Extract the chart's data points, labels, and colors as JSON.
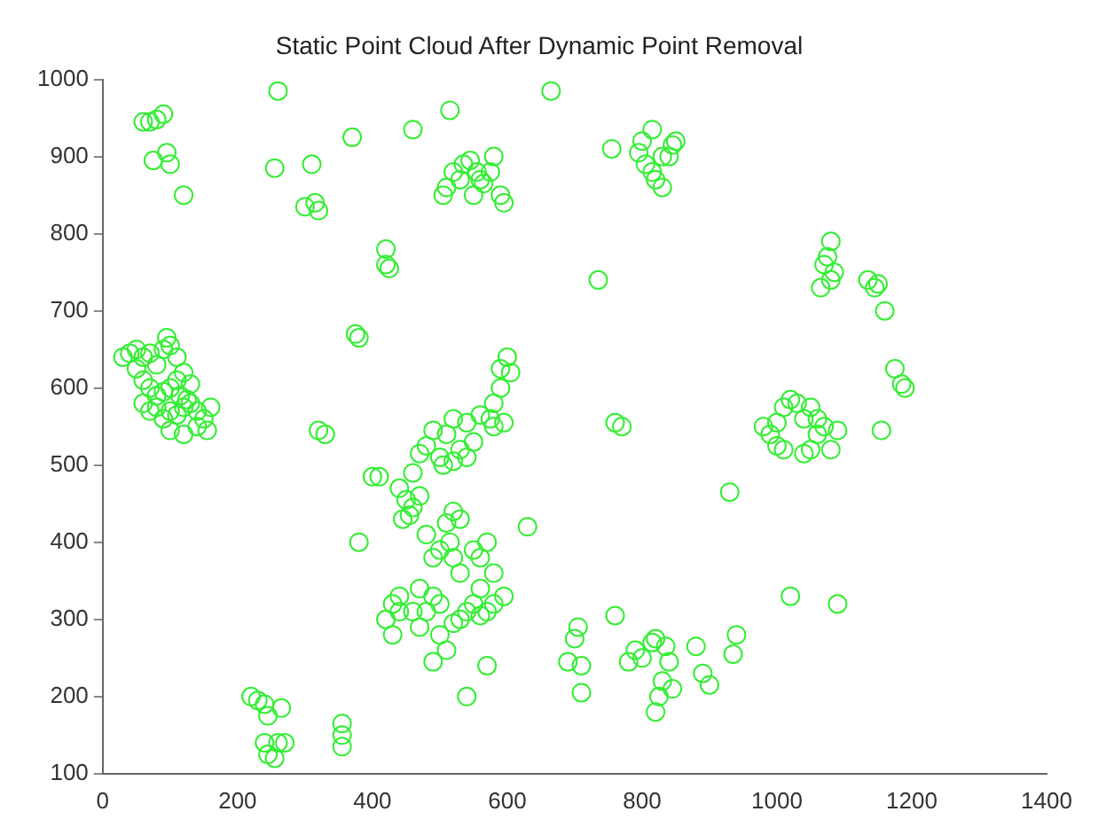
{
  "chart_data": {
    "type": "scatter",
    "title": "Static Point Cloud After Dynamic Point Removal",
    "marker": "circle",
    "grid": false,
    "legend": false,
    "xlim": [
      0,
      1400
    ],
    "xticks": [
      0,
      200,
      400,
      600,
      800,
      1000,
      1200,
      1400
    ],
    "ylim": [
      100,
      1000
    ],
    "yticks": [
      100,
      200,
      300,
      400,
      500,
      600,
      700,
      800,
      900,
      1000
    ],
    "series": [
      {
        "color": "#33ee33",
        "x": [
          70,
          80,
          90,
          60,
          75,
          95,
          100,
          120,
          260,
          255,
          310,
          300,
          315,
          320,
          370,
          420,
          420,
          425,
          460,
          515,
          505,
          510,
          520,
          530,
          535,
          545,
          555,
          560,
          575,
          580,
          590,
          595,
          550,
          565,
          665,
          755,
          795,
          800,
          815,
          805,
          815,
          820,
          830,
          840,
          845,
          850,
          830,
          375,
          380,
          735,
          760,
          770,
          1080,
          1075,
          1070,
          1085,
          1065,
          1080,
          1135,
          1145,
          1150,
          1160,
          1175,
          1185,
          1190,
          1155,
          30,
          40,
          50,
          60,
          70,
          80,
          90,
          95,
          100,
          110,
          50,
          60,
          70,
          80,
          90,
          100,
          110,
          120,
          130,
          60,
          70,
          80,
          90,
          100,
          110,
          120,
          130,
          140,
          150,
          160,
          100,
          120,
          140,
          155,
          115,
          125,
          320,
          330,
          400,
          410,
          540,
          560,
          580,
          590,
          600,
          605,
          590,
          580,
          575,
          595,
          520,
          490,
          510,
          530,
          500,
          505,
          520,
          540,
          550,
          470,
          460,
          480,
          630,
          380,
          440,
          450,
          460,
          470,
          445,
          455,
          480,
          490,
          500,
          510,
          520,
          530,
          515,
          520,
          530,
          550,
          560,
          570,
          580,
          560,
          550,
          540,
          530,
          520,
          500,
          490,
          480,
          470,
          440,
          430,
          420,
          440,
          460,
          470,
          500,
          510,
          490,
          560,
          570,
          580,
          595,
          540,
          570,
          430,
          690,
          700,
          705,
          710,
          710,
          760,
          780,
          790,
          800,
          820,
          835,
          815,
          840,
          830,
          825,
          820,
          845,
          880,
          890,
          900,
          935,
          940,
          930,
          1020,
          1090,
          980,
          990,
          1000,
          1010,
          1020,
          1030,
          1050,
          1040,
          1060,
          1070,
          1060,
          1050,
          1040,
          1080,
          1090,
          1000,
          1010,
          220,
          230,
          240,
          245,
          265,
          240,
          245,
          255,
          260,
          270,
          355,
          355,
          355
        ],
        "values": [
          945,
          948,
          955,
          945,
          895,
          905,
          890,
          850,
          985,
          885,
          890,
          835,
          840,
          830,
          925,
          780,
          760,
          755,
          935,
          960,
          850,
          860,
          880,
          870,
          890,
          895,
          880,
          870,
          880,
          900,
          850,
          840,
          850,
          865,
          985,
          910,
          905,
          920,
          935,
          890,
          880,
          870,
          860,
          900,
          915,
          920,
          900,
          670,
          665,
          740,
          555,
          550,
          790,
          770,
          760,
          750,
          730,
          740,
          740,
          730,
          735,
          700,
          625,
          605,
          600,
          545,
          640,
          645,
          650,
          640,
          645,
          630,
          650,
          665,
          655,
          640,
          625,
          610,
          600,
          590,
          595,
          600,
          610,
          620,
          605,
          580,
          570,
          575,
          560,
          570,
          565,
          575,
          580,
          570,
          560,
          575,
          545,
          540,
          550,
          545,
          590,
          585,
          545,
          540,
          485,
          485,
          555,
          565,
          580,
          625,
          640,
          620,
          600,
          550,
          560,
          555,
          560,
          545,
          540,
          520,
          510,
          500,
          505,
          510,
          530,
          515,
          490,
          525,
          420,
          400,
          470,
          455,
          445,
          460,
          430,
          435,
          410,
          380,
          390,
          425,
          440,
          430,
          400,
          380,
          360,
          390,
          380,
          400,
          360,
          340,
          320,
          310,
          300,
          295,
          320,
          330,
          310,
          340,
          330,
          320,
          300,
          310,
          310,
          290,
          280,
          260,
          245,
          305,
          310,
          320,
          330,
          200,
          240,
          280,
          245,
          275,
          290,
          240,
          205,
          305,
          245,
          260,
          250,
          275,
          265,
          270,
          245,
          220,
          200,
          180,
          210,
          265,
          230,
          215,
          255,
          280,
          465,
          330,
          320,
          550,
          540,
          555,
          575,
          585,
          580,
          575,
          560,
          560,
          550,
          540,
          520,
          515,
          520,
          545,
          525,
          520,
          200,
          195,
          190,
          175,
          185,
          140,
          125,
          120,
          140,
          140,
          165,
          150,
          135
        ]
      }
    ]
  }
}
